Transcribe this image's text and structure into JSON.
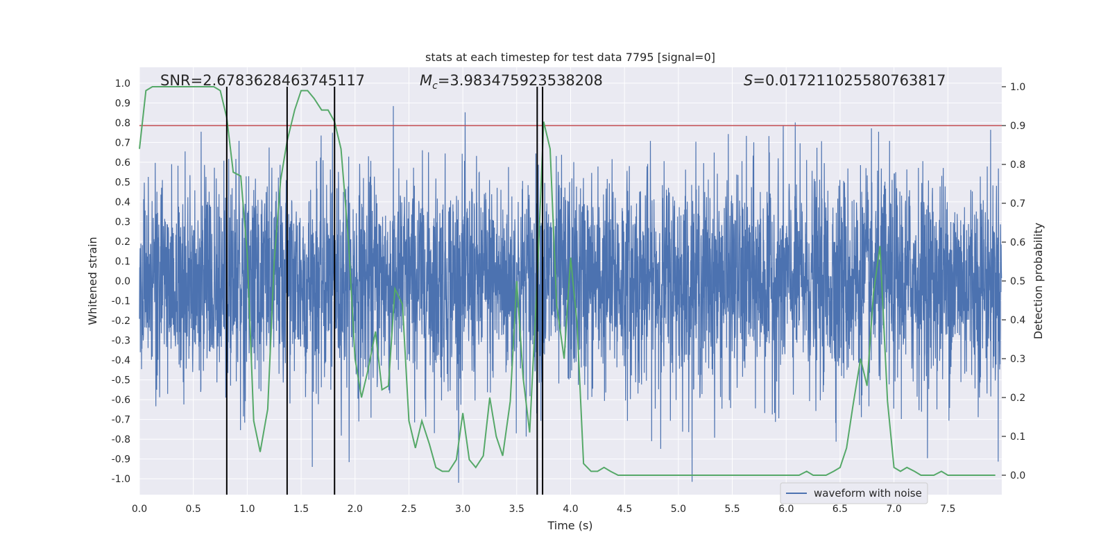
{
  "chart_data": {
    "type": "line",
    "title": "stats at each timestep for test data 7795 [signal=0]",
    "xlabel": "Time (s)",
    "ylabel": "Whitened strain",
    "ylabel_right": "Detection probability",
    "xlim": [
      0.0,
      8.0
    ],
    "ylim": [
      -1.08,
      1.08
    ],
    "ylim_right": [
      -0.05,
      1.05
    ],
    "xticks": [
      0.0,
      0.5,
      1.0,
      1.5,
      2.0,
      2.5,
      3.0,
      3.5,
      4.0,
      4.5,
      5.0,
      5.5,
      6.0,
      6.5,
      7.0,
      7.5
    ],
    "xtick_labels": [
      "0.0",
      "0.5",
      "1.0",
      "1.5",
      "2.0",
      "2.5",
      "3.0",
      "3.5",
      "4.0",
      "4.5",
      "5.0",
      "5.5",
      "6.0",
      "6.5",
      "7.0",
      "7.5"
    ],
    "yticks": [
      1.0,
      0.9,
      0.8,
      0.7,
      0.6,
      0.5,
      0.4,
      0.3,
      0.2,
      0.1,
      0.0,
      -0.1,
      -0.2,
      -0.3,
      -0.4,
      -0.5,
      -0.6,
      -0.7,
      -0.8,
      -0.9,
      -1.0
    ],
    "ytick_labels": [
      "1.0",
      "0.9",
      "0.8",
      "0.7",
      "0.6",
      "0.5",
      "0.4",
      "0.3",
      "0.2",
      "0.1",
      "0.0",
      "-0.1",
      "-0.2",
      "-0.3",
      "-0.4",
      "-0.5",
      "-0.6",
      "-0.7",
      "-0.8",
      "-0.9",
      "-1.0"
    ],
    "yticks_right": [
      1.0,
      0.9,
      0.8,
      0.7,
      0.6,
      0.5,
      0.4,
      0.3,
      0.2,
      0.1,
      0.0
    ],
    "ytick_labels_right": [
      "1.0",
      "0.9",
      "0.8",
      "0.7",
      "0.6",
      "0.5",
      "0.4",
      "0.3",
      "0.2",
      "0.1",
      "0.0"
    ],
    "threshold": 0.9,
    "vertical_markers": [
      0.81,
      1.37,
      1.81,
      3.69,
      3.74
    ],
    "marker_range": [
      -0.05,
      1.0
    ],
    "stats": {
      "snr_label": "SNR=2.6783628463745117",
      "mc_symbol": "M",
      "mc_subscript": "c",
      "mc_value": "=3.983475923538208",
      "s_symbol": "S",
      "s_value": "=0.017211025580763817"
    },
    "legend": {
      "label": "waveform with noise",
      "position": "lower-right"
    },
    "noise_seed": 7795,
    "noise_amplitude": 0.27,
    "series": [
      {
        "name": "waveform with noise",
        "axis": "left",
        "color": "#4c72b0",
        "kind": "noise",
        "samples": 4096
      },
      {
        "name": "detection probability",
        "axis": "right",
        "color": "#55a868",
        "x": [
          0.0,
          0.06,
          0.12,
          0.19,
          0.25,
          0.31,
          0.37,
          0.44,
          0.5,
          0.56,
          0.62,
          0.69,
          0.75,
          0.81,
          0.87,
          0.94,
          1.0,
          1.06,
          1.12,
          1.19,
          1.25,
          1.31,
          1.37,
          1.44,
          1.5,
          1.56,
          1.62,
          1.69,
          1.75,
          1.81,
          1.87,
          1.94,
          2.0,
          2.06,
          2.12,
          2.19,
          2.25,
          2.31,
          2.37,
          2.44,
          2.5,
          2.56,
          2.62,
          2.69,
          2.75,
          2.81,
          2.87,
          2.94,
          3.0,
          3.06,
          3.12,
          3.19,
          3.25,
          3.31,
          3.37,
          3.44,
          3.5,
          3.56,
          3.62,
          3.69,
          3.75,
          3.81,
          3.87,
          3.94,
          4.0,
          4.06,
          4.12,
          4.19,
          4.25,
          4.31,
          4.37,
          4.44,
          4.5,
          4.56,
          4.62,
          4.69,
          4.75,
          4.81,
          4.87,
          4.94,
          5.0,
          5.06,
          5.12,
          5.19,
          5.25,
          5.31,
          5.37,
          5.44,
          5.5,
          5.56,
          5.62,
          5.69,
          5.75,
          5.81,
          5.87,
          5.94,
          6.0,
          6.06,
          6.12,
          6.19,
          6.25,
          6.31,
          6.37,
          6.44,
          6.5,
          6.56,
          6.62,
          6.69,
          6.75,
          6.81,
          6.87,
          6.94,
          7.0,
          7.06,
          7.12,
          7.19,
          7.25,
          7.31,
          7.37,
          7.44,
          7.5,
          7.56,
          7.62,
          7.69,
          7.75,
          7.81,
          7.87,
          7.94
        ],
        "y": [
          0.84,
          0.99,
          1.0,
          1.0,
          1.0,
          1.0,
          1.0,
          1.0,
          1.0,
          1.0,
          1.0,
          1.0,
          0.99,
          0.92,
          0.78,
          0.77,
          0.57,
          0.14,
          0.06,
          0.17,
          0.55,
          0.76,
          0.86,
          0.94,
          0.99,
          0.99,
          0.97,
          0.94,
          0.94,
          0.91,
          0.84,
          0.6,
          0.3,
          0.2,
          0.27,
          0.37,
          0.22,
          0.23,
          0.48,
          0.44,
          0.14,
          0.07,
          0.14,
          0.08,
          0.02,
          0.01,
          0.01,
          0.04,
          0.16,
          0.04,
          0.02,
          0.05,
          0.2,
          0.1,
          0.05,
          0.19,
          0.5,
          0.25,
          0.11,
          0.5,
          0.91,
          0.84,
          0.44,
          0.3,
          0.56,
          0.39,
          0.03,
          0.01,
          0.01,
          0.02,
          0.01,
          0.0,
          0.0,
          0.0,
          0.0,
          0.0,
          0.0,
          0.0,
          0.0,
          0.0,
          0.0,
          0.0,
          0.0,
          0.0,
          0.0,
          0.0,
          0.0,
          0.0,
          0.0,
          0.0,
          0.0,
          0.0,
          0.0,
          0.0,
          0.0,
          0.0,
          0.0,
          0.0,
          0.0,
          0.01,
          0.0,
          0.0,
          0.0,
          0.01,
          0.02,
          0.07,
          0.18,
          0.3,
          0.23,
          0.47,
          0.59,
          0.19,
          0.02,
          0.01,
          0.02,
          0.01,
          0.0,
          0.0,
          0.0,
          0.01,
          0.0,
          0.0,
          0.0,
          0.0,
          0.0,
          0.0,
          0.0,
          0.0
        ]
      }
    ]
  }
}
